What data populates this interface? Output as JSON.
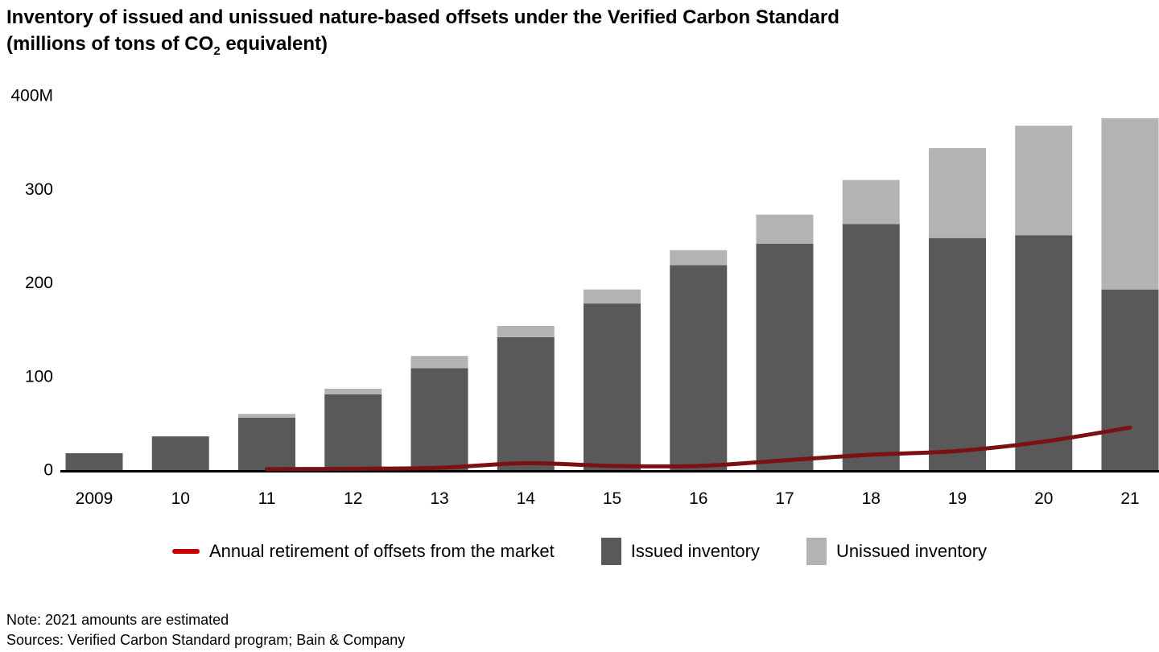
{
  "title": {
    "line1": "Inventory of issued and unissued nature-based offsets under the Verified Carbon Standard",
    "line2_prefix": "(millions of tons of CO",
    "line2_subscript": "2",
    "line2_suffix": " equivalent)"
  },
  "chart_data": {
    "type": "bar",
    "stacked": true,
    "categories": [
      "2009",
      "10",
      "11",
      "12",
      "13",
      "14",
      "15",
      "16",
      "17",
      "18",
      "19",
      "20",
      "21"
    ],
    "series": [
      {
        "name": "Issued inventory",
        "kind": "bar",
        "color": "#595959",
        "values": [
          18,
          36,
          56,
          81,
          109,
          142,
          178,
          219,
          242,
          263,
          248,
          251,
          193
        ]
      },
      {
        "name": "Unissued inventory",
        "kind": "bar",
        "color": "#b3b3b3",
        "values": [
          0,
          0,
          4,
          6,
          13,
          12,
          15,
          16,
          31,
          47,
          96,
          117,
          183
        ]
      },
      {
        "name": "Annual retirement of offsets from the market",
        "kind": "line",
        "color": "#7a1113",
        "values": [
          null,
          null,
          0.5,
          1,
          2,
          7,
          4,
          4,
          10,
          16,
          20,
          30,
          45
        ]
      }
    ],
    "y_ticks": [
      {
        "value": 0,
        "label": "0"
      },
      {
        "value": 100,
        "label": "100"
      },
      {
        "value": 200,
        "label": "200"
      },
      {
        "value": 300,
        "label": "300"
      },
      {
        "value": 400,
        "label": "400M"
      }
    ],
    "ylim": [
      0,
      400
    ],
    "grid": false,
    "legend_position": "bottom",
    "legend_line_swatch_color": "#cc0000",
    "axis_color": "#000000",
    "text_color": "#000000"
  },
  "notes": {
    "note": "Note: 2021 amounts are estimated",
    "sources": "Sources: Verified Carbon Standard program; Bain & Company"
  }
}
